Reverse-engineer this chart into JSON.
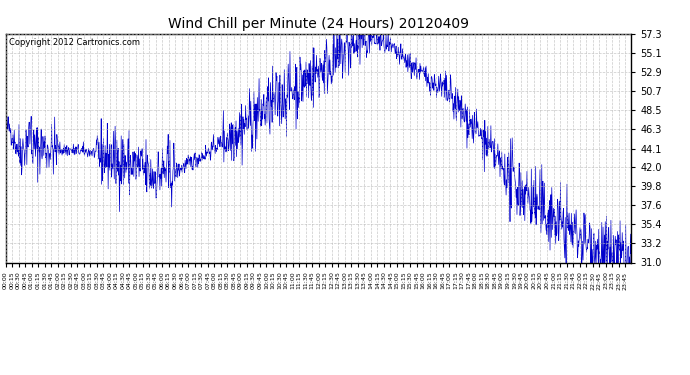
{
  "title": "Wind Chill per Minute (24 Hours) 20120409",
  "copyright_text": "Copyright 2012 Cartronics.com",
  "line_color": "#0000cc",
  "background_color": "#ffffff",
  "grid_color": "#bbbbbb",
  "y_min": 31.0,
  "y_max": 57.3,
  "y_ticks": [
    31.0,
    33.2,
    35.4,
    37.6,
    39.8,
    42.0,
    44.1,
    46.3,
    48.5,
    50.7,
    52.9,
    55.1,
    57.3
  ],
  "title_fontsize": 10,
  "copyright_fontsize": 6
}
